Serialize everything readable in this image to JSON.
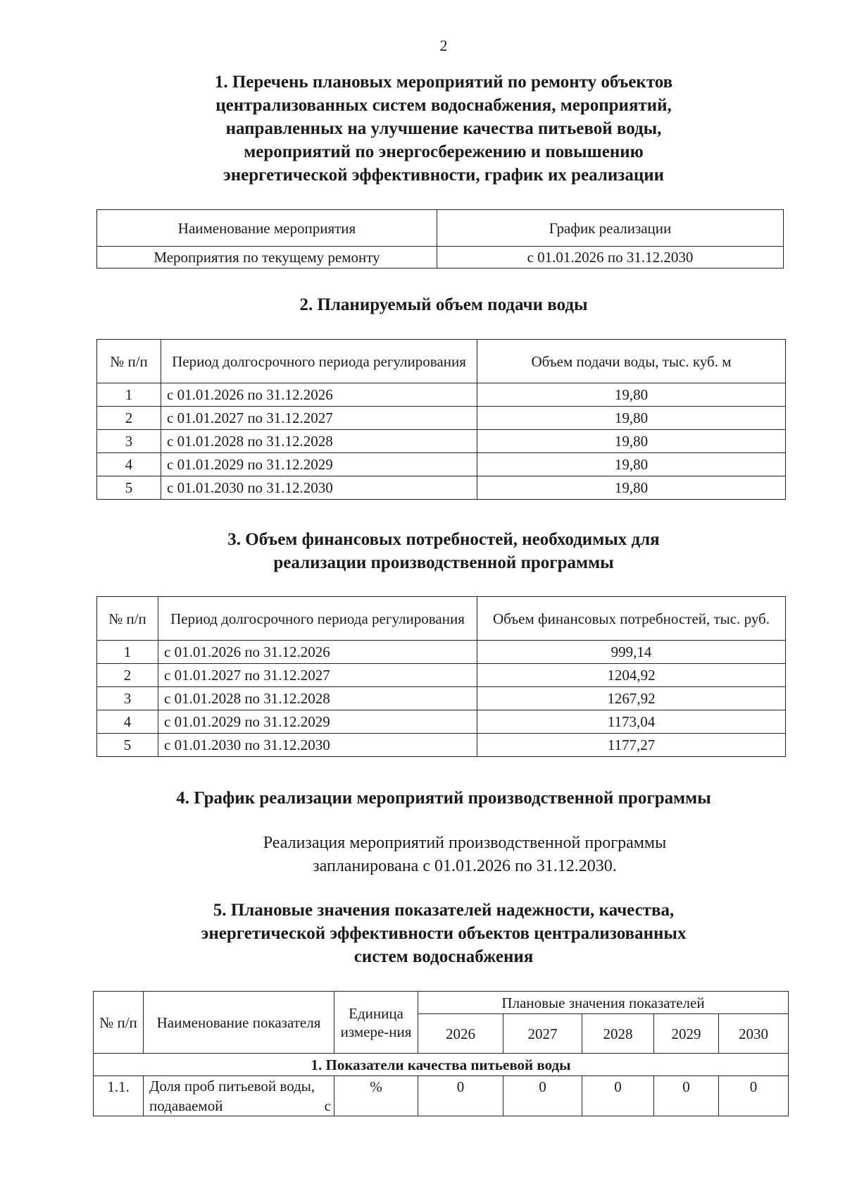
{
  "page_number": "2",
  "section1": {
    "title_lines": [
      "1. Перечень плановых мероприятий по ремонту объектов",
      "централизованных систем водоснабжения, мероприятий,",
      "направленных на улучшение качества питьевой воды,",
      "мероприятий по энергосбережению и повышению",
      "энергетической эффективности, график их реализации"
    ],
    "headers": [
      "Наименование мероприятия",
      "График реализации"
    ],
    "rows": [
      [
        "Мероприятия по текущему ремонту",
        "с 01.01.2026 по 31.12.2030"
      ]
    ]
  },
  "section2": {
    "title": "2. Планируемый объем подачи воды",
    "headers": [
      "№ п/п",
      "Период долгосрочного периода регулирования",
      "Объем подачи воды, тыс. куб. м"
    ],
    "rows": [
      [
        "1",
        "с 01.01.2026 по 31.12.2026",
        "19,80"
      ],
      [
        "2",
        "с 01.01.2027 по 31.12.2027",
        "19,80"
      ],
      [
        "3",
        "с 01.01.2028 по 31.12.2028",
        "19,80"
      ],
      [
        "4",
        "с 01.01.2029 по 31.12.2029",
        "19,80"
      ],
      [
        "5",
        "с 01.01.2030 по 31.12.2030",
        "19,80"
      ]
    ]
  },
  "section3": {
    "title_lines": [
      "3. Объем финансовых потребностей, необходимых для",
      "реализации производственной программы"
    ],
    "headers": [
      "№ п/п",
      "Период долгосрочного периода регулирования",
      "Объем финансовых потребностей, тыс. руб."
    ],
    "rows": [
      [
        "1",
        "с 01.01.2026 по 31.12.2026",
        "999,14"
      ],
      [
        "2",
        "с 01.01.2027 по 31.12.2027",
        "1204,92"
      ],
      [
        "3",
        "с 01.01.2028 по 31.12.2028",
        "1267,92"
      ],
      [
        "4",
        "с 01.01.2029 по 31.12.2029",
        "1173,04"
      ],
      [
        "5",
        "с 01.01.2030 по 31.12.2030",
        "1177,27"
      ]
    ]
  },
  "section4": {
    "title": "4. График реализации мероприятий производственной программы",
    "text_lines": [
      "Реализация мероприятий производственной программы",
      "запланирована с 01.01.2026 по 31.12.2030."
    ]
  },
  "section5": {
    "title_lines": [
      "5. Плановые значения показателей надежности, качества,",
      "энергетической эффективности объектов централизованных",
      "систем водоснабжения"
    ],
    "headers": {
      "num": "№ п/п",
      "name": "Наименование показателя",
      "unit": "Единица измере-ния",
      "planned": "Плановые значения показателей",
      "years": [
        "2026",
        "2027",
        "2028",
        "2029",
        "2030"
      ]
    },
    "group": "1. Показатели качества питьевой воды",
    "rows": [
      {
        "num": "1.1.",
        "name": "Доля проб питьевой воды, подаваемой с",
        "unit": "%",
        "values": [
          "0",
          "0",
          "0",
          "0",
          "0"
        ]
      }
    ]
  }
}
